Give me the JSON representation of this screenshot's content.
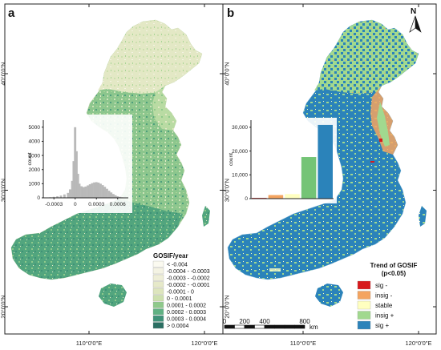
{
  "panel_a": {
    "letter": "a",
    "legend": {
      "title": "GOSIF/year",
      "classes": [
        {
          "label": "< -0.004",
          "color": "#fbfaf0"
        },
        {
          "label": "-0.0004 - -0.0003",
          "color": "#f4f3e3"
        },
        {
          "label": "-0.0003 - -0.0002",
          "color": "#eeeed7"
        },
        {
          "label": "-0.0002 - -0.0001",
          "color": "#e6e9c9"
        },
        {
          "label": "-0.0001 - 0",
          "color": "#dde5bd"
        },
        {
          "label": "0 - 0.0001",
          "color": "#cde0ae"
        },
        {
          "label": "0.0001 - 0.0002",
          "color": "#8ec98b"
        },
        {
          "label": "0.0002 - 0.0003",
          "color": "#60b183"
        },
        {
          "label": "0.0003 - 0.0004",
          "color": "#3f9278"
        },
        {
          "label": "> 0.0004",
          "color": "#2a6e62"
        }
      ]
    },
    "histogram": {
      "type": "bar",
      "ylabel": "count",
      "x_ticks": [
        "-0.0003",
        "0",
        "0.0003",
        "0.0006"
      ],
      "x_tick_values": [
        -0.0003,
        0,
        0.0003,
        0.0006
      ],
      "y_ticks": [
        "0",
        "1000",
        "2000",
        "3000",
        "4000",
        "5000"
      ],
      "y_tick_values": [
        0,
        1000,
        2000,
        3000,
        4000,
        5000
      ],
      "xlim": [
        -0.00045,
        0.00075
      ],
      "ylim": [
        0,
        5500
      ],
      "bar_color": "#b9b9b9",
      "x": [
        -0.0004,
        -0.00035,
        -0.0003,
        -0.00025,
        -0.0002,
        -0.00015,
        -0.0001,
        -7e-05,
        -4e-05,
        -2e-05,
        0,
        2e-05,
        4e-05,
        6e-05,
        9e-05,
        0.00012,
        0.00015,
        0.00018,
        0.00021,
        0.00024,
        0.00027,
        0.0003,
        0.00033,
        0.00036,
        0.00039,
        0.00042,
        0.00045,
        0.00048,
        0.00051,
        0.00054,
        0.00057,
        0.0006,
        0.00063,
        0.00066,
        0.0007
      ],
      "values": [
        20,
        40,
        70,
        110,
        160,
        240,
        350,
        600,
        1200,
        2600,
        5000,
        3300,
        1700,
        1000,
        820,
        760,
        800,
        880,
        960,
        1040,
        1090,
        1110,
        1080,
        1000,
        900,
        780,
        640,
        500,
        380,
        270,
        180,
        110,
        70,
        40,
        20
      ]
    }
  },
  "panel_b": {
    "letter": "b",
    "north_label": "N",
    "legend": {
      "title_line1": "Trend of GOSIF",
      "title_line2": "(p<0.05)",
      "classes": [
        {
          "label": "sig -",
          "color": "#d7191c"
        },
        {
          "label": "insig -",
          "color": "#f4a460"
        },
        {
          "label": "stable",
          "color": "#ffffc0"
        },
        {
          "label": "insig +",
          "color": "#a1d98f"
        },
        {
          "label": "sig +",
          "color": "#2b83ba"
        }
      ]
    },
    "bar_chart": {
      "type": "bar",
      "ylabel": "count",
      "y_ticks": [
        "0",
        "10,000",
        "20,000",
        "30,000"
      ],
      "y_tick_values": [
        0,
        10000,
        20000,
        30000
      ],
      "ylim": [
        0,
        33000
      ],
      "categories": [
        "sig -",
        "insig -",
        "stable",
        "insig +",
        "sig +"
      ],
      "values": [
        300,
        1500,
        1900,
        17500,
        31000
      ],
      "colors": [
        "#d7191c",
        "#f4a460",
        "#ffffc0",
        "#74c476",
        "#2b83ba"
      ]
    },
    "scale_bar": {
      "labels": [
        "0",
        "200",
        "400",
        "800"
      ],
      "label_values": [
        0,
        200,
        400,
        800
      ],
      "unit": "km"
    }
  },
  "coords": {
    "lat_labels": [
      {
        "label": "40°0'0\"N",
        "lat": 40
      },
      {
        "label": "30°0'0\"N",
        "lat": 30
      },
      {
        "label": "20°0'0\"N",
        "lat": 20
      }
    ],
    "lon_labels": [
      {
        "label": "110°0'0\"E",
        "lon": 110
      },
      {
        "label": "120°0'0\"E",
        "lon": 120
      }
    ]
  }
}
